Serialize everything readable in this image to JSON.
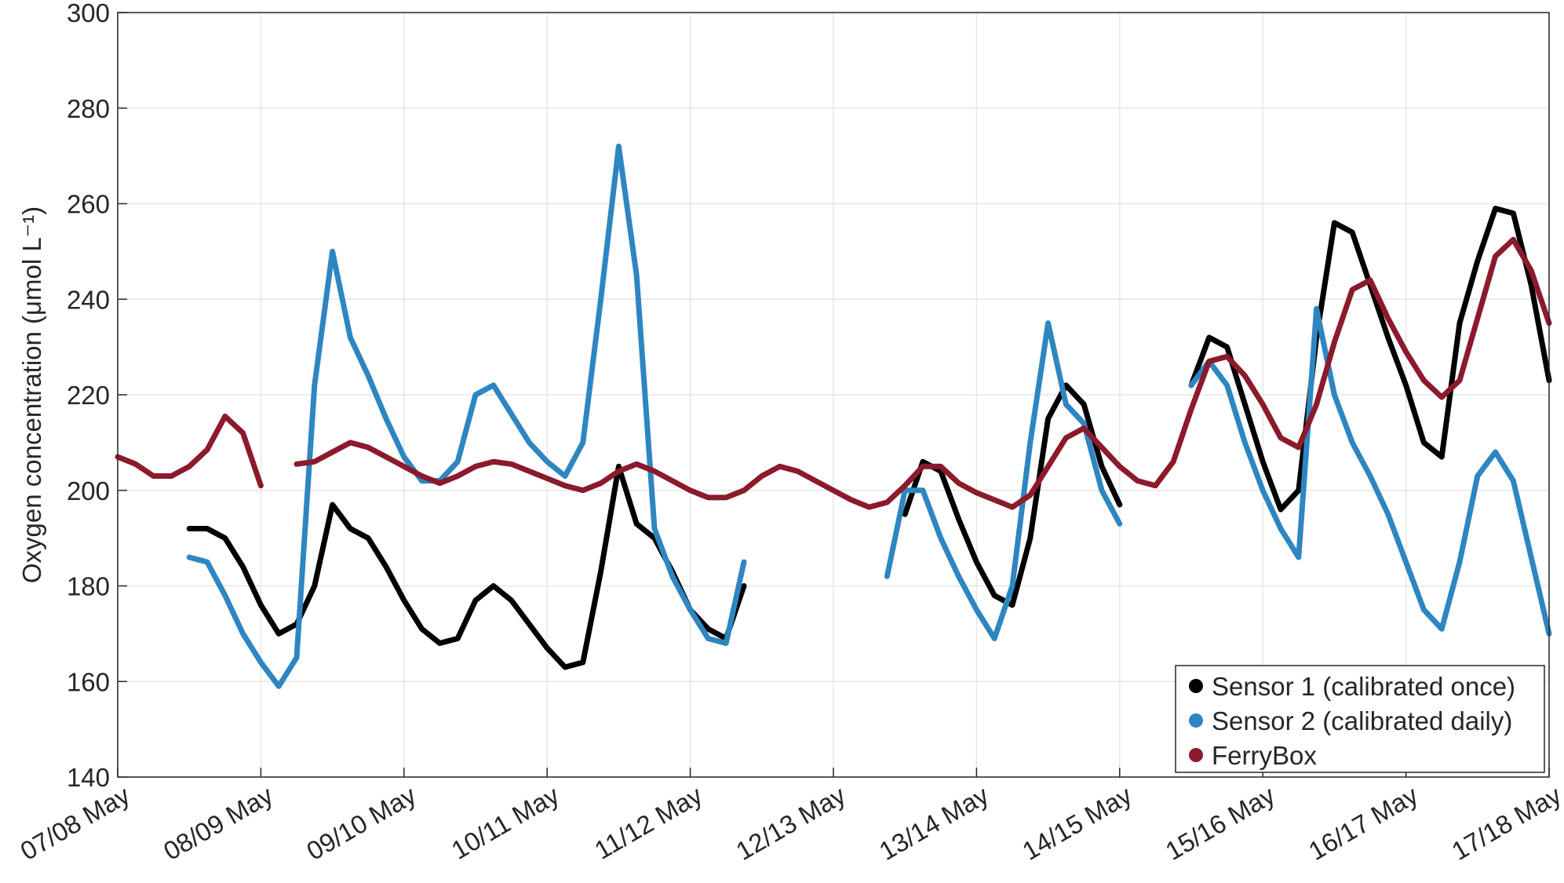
{
  "chart_data": {
    "type": "line",
    "ylabel": "Oxygen concentration (μmol L⁻¹)",
    "x": [
      0,
      0.125,
      0.25,
      0.375,
      0.5,
      0.625,
      0.75,
      0.875,
      1,
      1.125,
      1.25,
      1.375,
      1.5,
      1.625,
      1.75,
      1.875,
      2,
      2.125,
      2.25,
      2.375,
      2.5,
      2.625,
      2.75,
      2.875,
      3,
      3.125,
      3.25,
      3.375,
      3.5,
      3.625,
      3.75,
      3.875,
      4,
      4.125,
      4.25,
      4.375,
      4.5,
      4.625,
      4.75,
      4.875,
      5,
      5.125,
      5.25,
      5.375,
      5.5,
      5.625,
      5.75,
      5.875,
      6,
      6.125,
      6.25,
      6.375,
      6.5,
      6.625,
      6.75,
      6.875,
      7,
      7.125,
      7.25,
      7.375,
      7.5,
      7.625,
      7.75,
      7.875,
      8,
      8.125,
      8.25,
      8.375,
      8.5,
      8.625,
      8.75,
      8.875,
      9,
      9.125,
      9.25,
      9.375,
      9.5,
      9.625,
      9.75,
      9.875,
      10
    ],
    "series": [
      {
        "name": "Sensor 1 (calibrated once)",
        "color": "#000000",
        "values": [
          null,
          null,
          null,
          null,
          192,
          192,
          190,
          184,
          176,
          170,
          172,
          180,
          197,
          192,
          190,
          184,
          177,
          171,
          168,
          169,
          177,
          180,
          177,
          172,
          167,
          163,
          164,
          183,
          205,
          193,
          190,
          183,
          175,
          171,
          169,
          180,
          null,
          null,
          null,
          null,
          null,
          null,
          null,
          null,
          195,
          206,
          204,
          194,
          185,
          178,
          176,
          190,
          215,
          222,
          218,
          205,
          197,
          null,
          null,
          null,
          222,
          232,
          230,
          218,
          206,
          196,
          200,
          232,
          256,
          254,
          243,
          232,
          222,
          210,
          207,
          235,
          248,
          259,
          258,
          243,
          223
        ]
      },
      {
        "name": "Sensor 2 (calibrated daily)",
        "color": "#2e86c1",
        "values": [
          null,
          null,
          null,
          null,
          186,
          185,
          178,
          170,
          164,
          159,
          165,
          222,
          250,
          232,
          224,
          215,
          207,
          202,
          202,
          206,
          220,
          222,
          216,
          210,
          206,
          203,
          210,
          240,
          272,
          245,
          192,
          182,
          175,
          169,
          168,
          185,
          null,
          null,
          null,
          null,
          null,
          null,
          null,
          182,
          200,
          200,
          190,
          182,
          175,
          169,
          180,
          210,
          235,
          218,
          214,
          200,
          193,
          null,
          null,
          null,
          222,
          227,
          222,
          210,
          200,
          192,
          186,
          238,
          220,
          210,
          203,
          195,
          185,
          175,
          171,
          185,
          203,
          208,
          202,
          186,
          170
        ]
      },
      {
        "name": "FerryBox",
        "color": "#8b1a2b",
        "values": [
          207,
          205.5,
          203,
          203,
          205,
          208.5,
          215.5,
          212,
          201,
          null,
          205.5,
          206,
          208,
          210,
          209,
          207,
          205,
          203,
          201.5,
          203,
          205,
          206,
          205.5,
          204,
          202.5,
          201,
          200,
          201.5,
          204,
          205.5,
          204,
          202,
          200,
          198.5,
          198.5,
          200,
          203,
          205,
          204,
          202,
          200,
          198,
          196.5,
          197.5,
          201,
          205,
          205,
          201.5,
          199.5,
          198,
          196.5,
          199,
          205,
          211,
          213,
          209,
          205,
          202,
          201,
          206,
          217,
          227,
          228,
          224,
          218,
          211,
          209,
          218,
          231,
          242,
          244,
          236,
          229,
          223,
          219.5,
          223,
          236,
          249,
          252.5,
          246,
          235
        ]
      }
    ],
    "xlim": [
      0,
      10
    ],
    "xticks": [
      {
        "value": 0,
        "label": "07/08 May"
      },
      {
        "value": 1,
        "label": "08/09 May"
      },
      {
        "value": 2,
        "label": "09/10 May"
      },
      {
        "value": 3,
        "label": "10/11 May"
      },
      {
        "value": 4,
        "label": "11/12 May"
      },
      {
        "value": 5,
        "label": "12/13 May"
      },
      {
        "value": 6,
        "label": "13/14 May"
      },
      {
        "value": 7,
        "label": "14/15 May"
      },
      {
        "value": 8,
        "label": "15/16 May"
      },
      {
        "value": 9,
        "label": "16/17 May"
      },
      {
        "value": 10,
        "label": "17/18 May"
      }
    ],
    "ylim": [
      140,
      300
    ],
    "yticks": [
      140,
      160,
      180,
      200,
      220,
      240,
      260,
      280,
      300
    ],
    "grid": true,
    "legend": "lower right"
  }
}
